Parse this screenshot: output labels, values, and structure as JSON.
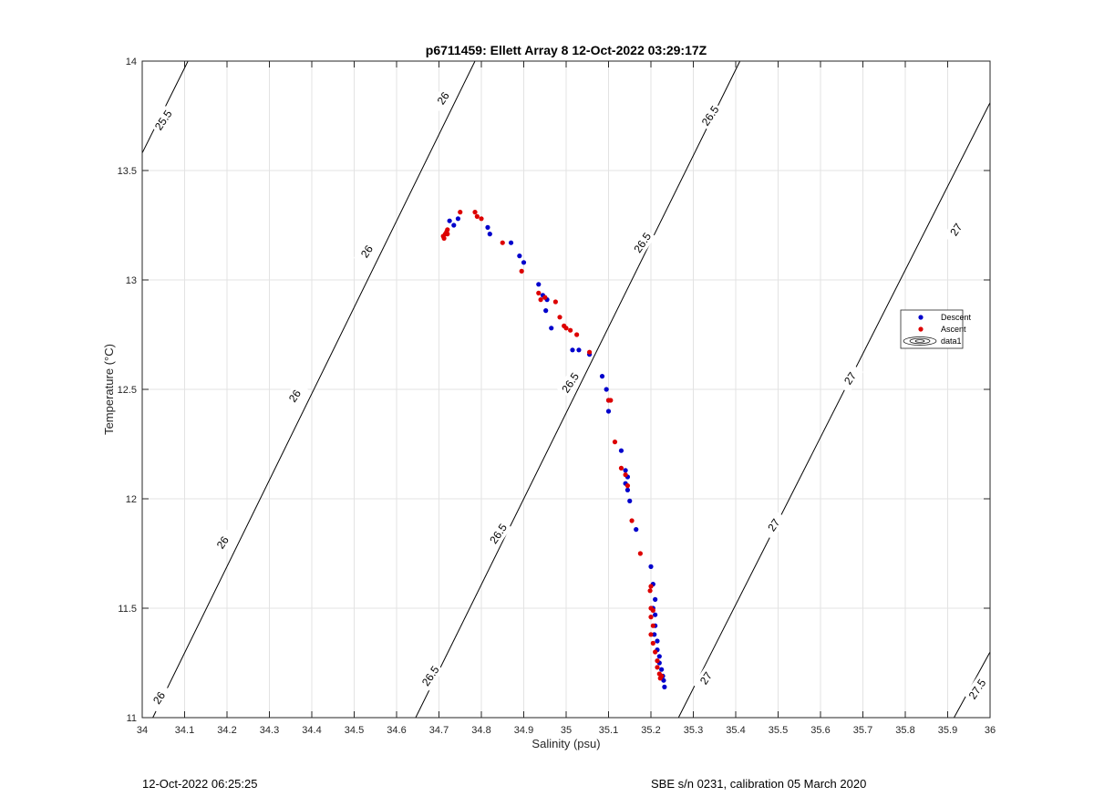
{
  "footer": {
    "left": "12-Oct-2022 06:25:25",
    "right": "SBE s/n 0231, calibration 05 March 2020"
  },
  "chart_data": {
    "type": "scatter",
    "title": "p6711459: Ellett Array 8 12-Oct-2022 03:29:17Z",
    "xlabel": "Salinity (psu)",
    "ylabel": "Temperature (°C)",
    "xlim": [
      34,
      36
    ],
    "ylim": [
      11,
      14
    ],
    "xticks": [
      "34",
      "34.1",
      "34.2",
      "34.3",
      "34.4",
      "34.5",
      "34.6",
      "34.7",
      "34.8",
      "34.9",
      "35",
      "35.1",
      "35.2",
      "35.3",
      "35.4",
      "35.5",
      "35.6",
      "35.7",
      "35.8",
      "35.9",
      "36"
    ],
    "yticks": [
      "11",
      "11.5",
      "12",
      "12.5",
      "13",
      "13.5",
      "14"
    ],
    "grid": true,
    "legend_position": "right",
    "colors": {
      "descent": "#0000cc",
      "ascent": "#dd0000",
      "contour": "#000000",
      "grid": "#e3e3e3"
    },
    "series": [
      {
        "name": "Descent",
        "type": "scatter",
        "points": [
          [
            34.725,
            13.27
          ],
          [
            34.735,
            13.25
          ],
          [
            34.745,
            13.28
          ],
          [
            34.815,
            13.24
          ],
          [
            34.82,
            13.21
          ],
          [
            34.87,
            13.17
          ],
          [
            34.89,
            13.11
          ],
          [
            34.9,
            13.08
          ],
          [
            34.935,
            12.98
          ],
          [
            34.945,
            12.93
          ],
          [
            34.95,
            12.92
          ],
          [
            34.955,
            12.91
          ],
          [
            34.952,
            12.86
          ],
          [
            34.965,
            12.78
          ],
          [
            35.015,
            12.68
          ],
          [
            35.03,
            12.68
          ],
          [
            35.055,
            12.66
          ],
          [
            35.085,
            12.56
          ],
          [
            35.095,
            12.5
          ],
          [
            35.1,
            12.45
          ],
          [
            35.1,
            12.4
          ],
          [
            35.13,
            12.22
          ],
          [
            35.14,
            12.13
          ],
          [
            35.145,
            12.1
          ],
          [
            35.14,
            12.07
          ],
          [
            35.145,
            12.04
          ],
          [
            35.15,
            11.99
          ],
          [
            35.165,
            11.86
          ],
          [
            35.2,
            11.69
          ],
          [
            35.205,
            11.61
          ],
          [
            35.21,
            11.54
          ],
          [
            35.205,
            11.5
          ],
          [
            35.21,
            11.47
          ],
          [
            35.21,
            11.42
          ],
          [
            35.208,
            11.38
          ],
          [
            35.215,
            11.35
          ],
          [
            35.215,
            11.31
          ],
          [
            35.22,
            11.28
          ],
          [
            35.22,
            11.25
          ],
          [
            35.225,
            11.22
          ],
          [
            35.228,
            11.19
          ],
          [
            35.23,
            11.17
          ],
          [
            35.232,
            11.14
          ]
        ]
      },
      {
        "name": "Ascent",
        "type": "scatter",
        "points": [
          [
            34.71,
            13.2
          ],
          [
            34.712,
            13.19
          ],
          [
            34.715,
            13.21
          ],
          [
            34.718,
            13.22
          ],
          [
            34.72,
            13.21
          ],
          [
            34.72,
            13.23
          ],
          [
            34.75,
            13.31
          ],
          [
            34.785,
            13.31
          ],
          [
            34.79,
            13.29
          ],
          [
            34.8,
            13.28
          ],
          [
            34.85,
            13.17
          ],
          [
            34.895,
            13.04
          ],
          [
            34.935,
            12.94
          ],
          [
            34.94,
            12.91
          ],
          [
            34.95,
            12.92
          ],
          [
            34.975,
            12.9
          ],
          [
            34.985,
            12.83
          ],
          [
            34.995,
            12.79
          ],
          [
            35.0,
            12.78
          ],
          [
            35.01,
            12.77
          ],
          [
            35.025,
            12.75
          ],
          [
            35.055,
            12.67
          ],
          [
            35.1,
            12.45
          ],
          [
            35.105,
            12.45
          ],
          [
            35.115,
            12.26
          ],
          [
            35.13,
            12.14
          ],
          [
            35.14,
            12.11
          ],
          [
            35.145,
            12.06
          ],
          [
            35.155,
            11.9
          ],
          [
            35.175,
            11.75
          ],
          [
            35.2,
            11.6
          ],
          [
            35.198,
            11.58
          ],
          [
            35.2,
            11.5
          ],
          [
            35.205,
            11.49
          ],
          [
            35.2,
            11.46
          ],
          [
            35.205,
            11.42
          ],
          [
            35.2,
            11.38
          ],
          [
            35.205,
            11.34
          ],
          [
            35.21,
            11.3
          ],
          [
            35.215,
            11.26
          ],
          [
            35.215,
            11.23
          ],
          [
            35.22,
            11.2
          ],
          [
            35.222,
            11.18
          ],
          [
            35.225,
            11.19
          ]
        ]
      },
      {
        "name": "data1",
        "type": "contour",
        "levels": [
          {
            "label": "25.5",
            "points": [
              [
                34.0,
                13.58
              ],
              [
                34.108,
                14.0
              ]
            ]
          },
          {
            "label": "26",
            "points": [
              [
                34.025,
                11.0
              ],
              [
                34.785,
                14.0
              ]
            ]
          },
          {
            "label": "26.5",
            "points": [
              [
                34.645,
                11.0
              ],
              [
                35.41,
                14.0
              ]
            ]
          },
          {
            "label": "27",
            "points": [
              [
                35.265,
                11.0
              ],
              [
                36.0,
                13.81
              ]
            ]
          },
          {
            "label": "27.5",
            "points": [
              [
                35.915,
                11.0
              ],
              [
                36.0,
                11.3
              ]
            ]
          }
        ],
        "contour_labels": [
          {
            "text": "25.5",
            "x": 34.05,
            "y": 13.73
          },
          {
            "text": "26",
            "x": 34.71,
            "y": 13.83
          },
          {
            "text": "26",
            "x": 34.53,
            "y": 13.13
          },
          {
            "text": "26",
            "x": 34.36,
            "y": 12.47
          },
          {
            "text": "26",
            "x": 34.19,
            "y": 11.8
          },
          {
            "text": "26",
            "x": 34.04,
            "y": 11.09
          },
          {
            "text": "26.5",
            "x": 35.34,
            "y": 13.75
          },
          {
            "text": "26.5",
            "x": 35.18,
            "y": 13.17
          },
          {
            "text": "26.5",
            "x": 35.01,
            "y": 12.53
          },
          {
            "text": "26.5",
            "x": 34.84,
            "y": 11.84
          },
          {
            "text": "26.5",
            "x": 34.68,
            "y": 11.19
          },
          {
            "text": "27",
            "x": 35.92,
            "y": 13.23
          },
          {
            "text": "27",
            "x": 35.67,
            "y": 12.55
          },
          {
            "text": "27",
            "x": 35.49,
            "y": 11.88
          },
          {
            "text": "27",
            "x": 35.33,
            "y": 11.18
          },
          {
            "text": "27.5",
            "x": 35.97,
            "y": 11.13
          }
        ]
      }
    ]
  }
}
